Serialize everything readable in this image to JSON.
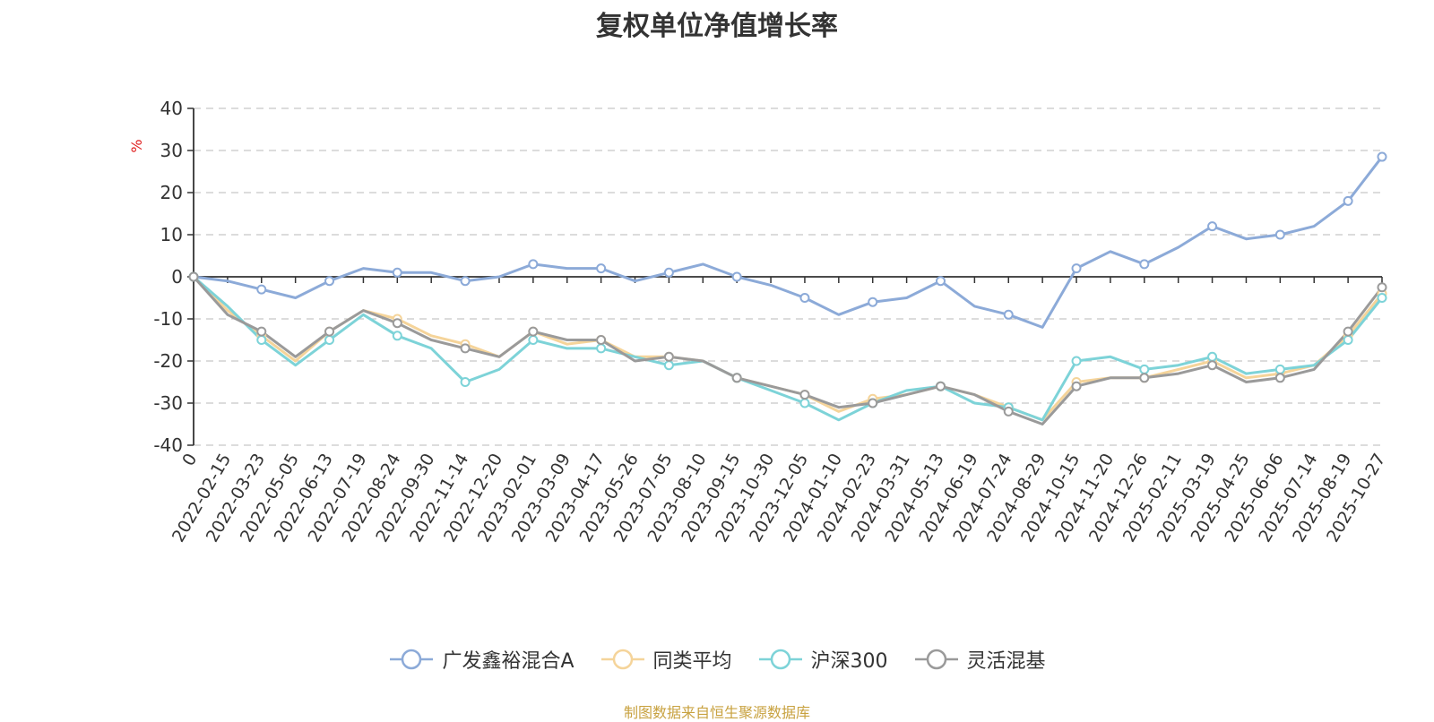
{
  "title": "复权单位净值增长率",
  "source_note": "制图数据来自恒生聚源数据库",
  "chart_data": {
    "type": "line",
    "title": "复权单位净值增长率",
    "ylabel": "%",
    "ylim": [
      -40,
      40
    ],
    "yticks": [
      40,
      30,
      20,
      10,
      0,
      -10,
      -20,
      -30,
      -40
    ],
    "grid": true,
    "legend_position": "bottom",
    "x_tick_labels": [
      "0",
      "2022-02-15",
      "2022-03-23",
      "2022-05-05",
      "2022-06-13",
      "2022-07-19",
      "2022-08-24",
      "2022-09-30",
      "2022-11-14",
      "2022-12-20",
      "2023-02-01",
      "2023-03-09",
      "2023-04-17",
      "2023-05-26",
      "2023-07-05",
      "2023-08-10",
      "2023-09-15",
      "2023-10-30",
      "2023-12-05",
      "2024-01-10",
      "2024-02-23",
      "2024-03-31",
      "2024-05-13",
      "2024-06-19",
      "2024-07-24",
      "2024-08-29",
      "2024-10-15",
      "2024-11-20",
      "2024-12-26",
      "2025-02-11",
      "2025-03-19",
      "2025-04-25",
      "2025-06-06",
      "2025-07-14",
      "2025-08-19",
      "2025-10-27"
    ],
    "x": [
      0,
      1,
      2,
      3,
      4,
      5,
      6,
      7,
      8,
      9,
      10,
      11,
      12,
      13,
      14,
      15,
      16,
      17,
      18,
      19,
      20,
      21,
      22,
      23,
      24,
      25,
      26,
      27,
      28,
      29,
      30,
      31,
      32,
      33,
      34,
      35
    ],
    "series": [
      {
        "name": "广发鑫裕混合A",
        "color": "#8caad8",
        "values": [
          0,
          -1,
          -3,
          -5,
          -1,
          2,
          1,
          1,
          -1,
          0,
          3,
          2,
          2,
          -1,
          1,
          3,
          0,
          -2,
          -5,
          -9,
          -6,
          -5,
          -1,
          -7,
          -9,
          -12,
          2,
          6,
          3,
          7,
          12,
          9,
          10,
          12,
          18,
          28.5
        ]
      },
      {
        "name": "同类平均",
        "color": "#f5d49a",
        "values": [
          0,
          -8,
          -14,
          -20,
          -13,
          -8,
          -10,
          -14,
          -16,
          -19,
          -13,
          -16,
          -15,
          -19,
          -19,
          -20,
          -24,
          -26,
          -28,
          -32,
          -29,
          -28,
          -26,
          -28,
          -31,
          -34,
          -25,
          -24,
          -24,
          -22,
          -20,
          -24,
          -23,
          -21,
          -14,
          -4
        ]
      },
      {
        "name": "沪深300",
        "color": "#7dd3d8",
        "values": [
          0,
          -7,
          -15,
          -21,
          -15,
          -9,
          -14,
          -17,
          -25,
          -22,
          -15,
          -17,
          -17,
          -19,
          -21,
          -20,
          -24,
          -27,
          -30,
          -34,
          -30,
          -27,
          -26,
          -30,
          -31,
          -34,
          -20,
          -19,
          -22,
          -21,
          -19,
          -23,
          -22,
          -21,
          -15,
          -5
        ]
      },
      {
        "name": "灵活混基",
        "color": "#9a9a9a",
        "values": [
          0,
          -9,
          -13,
          -19,
          -13,
          -8,
          -11,
          -15,
          -17,
          -19,
          -13,
          -15,
          -15,
          -20,
          -19,
          -20,
          -24,
          -26,
          -28,
          -31,
          -30,
          -28,
          -26,
          -28,
          -32,
          -35,
          -26,
          -24,
          -24,
          -23,
          -21,
          -25,
          -24,
          -22,
          -13,
          -2.5
        ]
      }
    ]
  }
}
